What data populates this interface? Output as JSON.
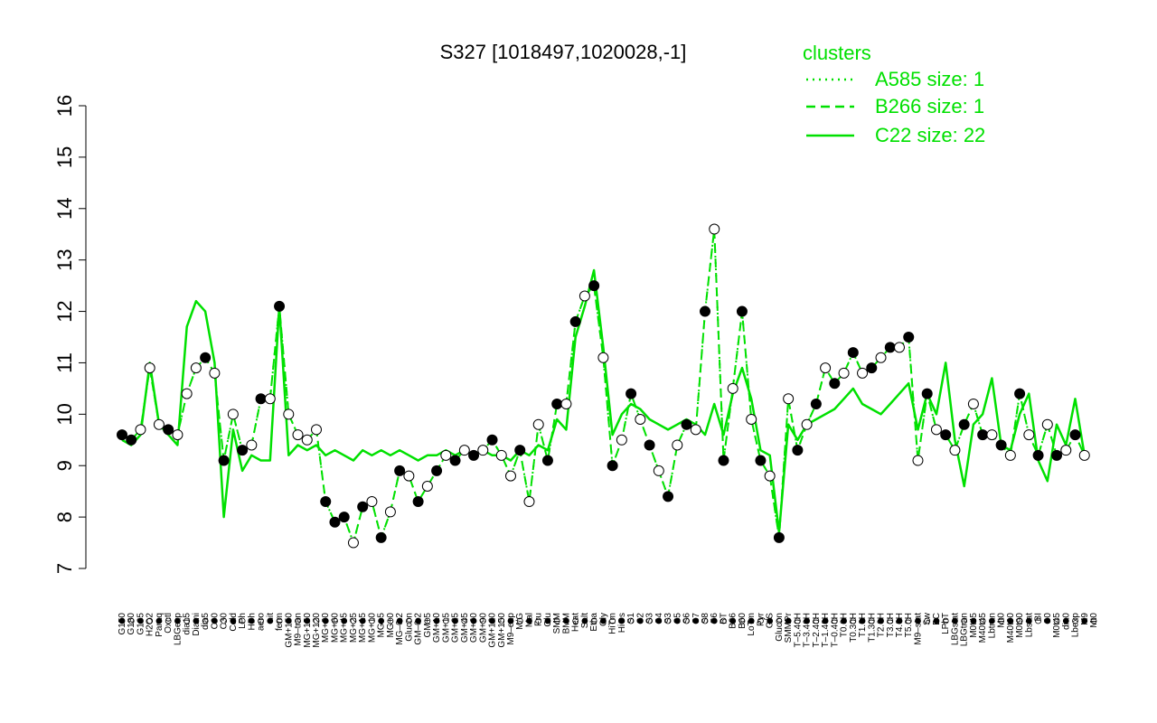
{
  "chart_data": {
    "type": "line",
    "title": "S327 [1018497,1020028,-1]",
    "xlabel": "",
    "ylabel": "",
    "ylim": [
      7,
      16
    ],
    "yticks": [
      7,
      8,
      9,
      10,
      11,
      12,
      13,
      14,
      15,
      16
    ],
    "xtick_labels": [
      "G150",
      "G180",
      "G135",
      "H2O2",
      "Paraq",
      "Oxctl",
      "LBGexp",
      "dia15",
      "Diami",
      "dia5",
      "C90",
      "C30",
      "Cold",
      "LPh",
      "HPh",
      "aero",
      "nit",
      "ferm",
      "GM+150",
      "M9–tran",
      "MG+150",
      "MG+120",
      "MG+90",
      "MG+60",
      "MG+45",
      "MG+25",
      "MG+15",
      "MG+10",
      "MG+5",
      "MG+0",
      "MG–0.2",
      "Glucon",
      "GM–0.2",
      "GM+5",
      "GM+10",
      "GM+15",
      "GM+25",
      "GM+45",
      "GM+60",
      "GM+90",
      "GM+120",
      "GM+150",
      "M9–exp",
      "M/G",
      "Mal",
      "Fru",
      "Glu",
      "SMM",
      "BMM",
      "Heat",
      "Salt",
      "Etha",
      "Gly",
      "HiTm",
      "HiOs",
      "S1",
      "S2",
      "S3",
      "S4",
      "S3",
      "S5",
      "S6",
      "S7",
      "S8",
      "S6",
      "BT",
      "B36",
      "B60",
      "LoTm",
      "Pyr",
      "G/S",
      "Glucon",
      "SMMPr",
      "T–5.40H",
      "T–3.40H",
      "T–2.40H",
      "T–1.40H",
      "T–0.40H",
      "T0.0H",
      "T0.30H",
      "T1.0H",
      "T1.30H",
      "T2.0H",
      "T3.0H",
      "T4.0H",
      "T5.0H",
      "M9–stat",
      "Sw",
      "BC",
      "LPhT",
      "LBGstat",
      "LBGtran",
      "M0t45",
      "M40t45",
      "Lbtran",
      "Mt0",
      "M40t90",
      "M0t90",
      "Lbstat",
      "BI",
      "S0",
      "M0t45",
      "dia0",
      "Lbexp",
      "M9",
      "Mt0"
    ],
    "series": [
      {
        "name": "A585 size: 1",
        "style": "dotted",
        "color": "#00e000",
        "y": [
          9.6,
          9.5,
          9.7,
          10.9,
          9.8,
          9.7,
          9.6,
          10.4,
          10.9,
          11.1,
          10.8,
          9.1,
          10.0,
          9.3,
          9.4,
          10.3,
          10.3,
          12.1,
          10.0,
          9.6,
          9.5,
          9.7,
          8.3,
          7.9,
          8.0,
          7.5,
          8.2,
          8.3,
          7.6,
          8.1,
          8.9,
          8.8,
          8.3,
          8.6,
          8.9,
          9.2,
          9.1,
          9.3,
          9.2,
          9.3,
          9.5,
          9.2,
          8.8,
          9.3,
          8.3,
          9.8,
          9.1,
          10.2,
          10.2,
          11.8,
          12.3,
          12.5,
          11.1,
          9.0,
          9.5,
          10.4,
          9.9,
          9.4,
          8.9,
          8.4,
          9.4,
          9.8,
          9.7,
          12.0,
          13.6,
          9.1,
          10.5,
          12.0,
          9.9,
          9.1,
          8.8,
          7.6,
          10.3,
          9.3,
          9.8,
          10.2,
          10.9,
          10.6,
          10.8,
          11.2,
          10.8,
          10.9,
          11.1,
          11.3,
          11.3,
          11.5,
          9.1,
          10.4,
          9.7,
          9.6,
          9.3,
          9.8,
          10.2,
          9.6,
          9.6,
          9.4,
          9.2,
          10.4,
          9.6,
          9.2,
          9.8,
          9.2,
          9.3,
          9.6,
          9.2
        ]
      },
      {
        "name": "B266 size: 1",
        "style": "dashed",
        "color": "#00e000",
        "y": [
          9.6,
          9.5,
          9.7,
          10.9,
          9.8,
          9.7,
          9.6,
          10.4,
          10.9,
          11.1,
          10.8,
          9.1,
          10.0,
          9.3,
          9.4,
          10.3,
          10.3,
          12.1,
          10.0,
          9.6,
          9.5,
          9.7,
          8.3,
          7.9,
          8.0,
          7.5,
          8.2,
          8.3,
          7.6,
          8.1,
          8.9,
          8.8,
          8.3,
          8.6,
          8.9,
          9.2,
          9.1,
          9.3,
          9.2,
          9.3,
          9.5,
          9.2,
          8.8,
          9.3,
          8.3,
          9.8,
          9.1,
          10.2,
          10.2,
          11.8,
          12.3,
          12.5,
          11.1,
          9.0,
          9.5,
          10.4,
          9.9,
          9.4,
          8.9,
          8.4,
          9.4,
          9.8,
          9.7,
          12.0,
          13.6,
          9.1,
          10.5,
          12.0,
          9.9,
          9.1,
          8.8,
          7.6,
          10.3,
          9.3,
          9.8,
          10.2,
          10.9,
          10.6,
          10.8,
          11.2,
          10.8,
          10.9,
          11.1,
          11.3,
          11.3,
          11.5,
          9.1,
          10.4,
          9.7,
          9.6,
          9.3,
          9.8,
          10.2,
          9.6,
          9.6,
          9.4,
          9.2,
          10.4,
          9.6,
          9.2,
          9.8,
          9.2,
          9.3,
          9.6,
          9.2
        ]
      },
      {
        "name": "C22 size: 22",
        "style": "solid",
        "color": "#00e000",
        "y": [
          9.5,
          9.4,
          9.6,
          11.0,
          9.8,
          9.6,
          9.4,
          11.7,
          12.2,
          12.0,
          11.0,
          8.0,
          9.7,
          8.9,
          9.2,
          9.1,
          9.1,
          12.1,
          9.2,
          9.4,
          9.3,
          9.4,
          9.2,
          9.3,
          9.2,
          9.1,
          9.3,
          9.2,
          9.3,
          9.2,
          9.3,
          9.2,
          9.1,
          9.2,
          9.2,
          9.3,
          9.2,
          9.3,
          9.2,
          9.3,
          9.2,
          9.2,
          9.1,
          9.3,
          9.2,
          9.4,
          9.3,
          9.9,
          9.7,
          11.5,
          12.1,
          12.8,
          11.3,
          9.6,
          10.0,
          10.2,
          10.1,
          9.9,
          9.8,
          9.7,
          9.8,
          9.9,
          9.8,
          9.6,
          10.2,
          9.6,
          10.4,
          10.9,
          10.3,
          9.3,
          9.2,
          7.7,
          9.8,
          9.5,
          9.8,
          9.9,
          10.0,
          10.1,
          10.3,
          10.5,
          10.2,
          10.1,
          10.0,
          10.2,
          10.4,
          10.6,
          9.7,
          10.4,
          10.0,
          11.0,
          9.5,
          8.6,
          9.8,
          10.0,
          10.7,
          9.4,
          9.3,
          10.0,
          10.4,
          9.1,
          8.7,
          9.8,
          9.4,
          10.3,
          9.2
        ]
      }
    ],
    "points": {
      "filled": [
        0,
        1,
        5,
        9,
        11,
        13,
        15,
        17,
        22,
        23,
        24,
        26,
        28,
        30,
        32,
        34,
        36,
        38,
        40,
        43,
        46,
        47,
        49,
        51,
        53,
        55,
        57,
        59,
        61,
        63,
        65,
        67,
        69,
        71,
        73,
        75,
        77,
        79,
        81,
        83,
        85,
        87,
        89,
        91,
        93,
        95,
        97,
        99,
        101,
        103
      ],
      "open": [
        2,
        3,
        4,
        6,
        7,
        8,
        10,
        12,
        14,
        16,
        18,
        19,
        20,
        21,
        25,
        27,
        29,
        31,
        33,
        35,
        37,
        39,
        41,
        42,
        44,
        45,
        48,
        50,
        52,
        54,
        56,
        58,
        60,
        62,
        64,
        66,
        68,
        70,
        72,
        74,
        76,
        78,
        80,
        82,
        84,
        86,
        88,
        90,
        92,
        94,
        96,
        98,
        100,
        102,
        104
      ]
    },
    "legend": {
      "title": "clusters",
      "position": "top-right",
      "entries": [
        "A585 size: 1",
        "B266 size: 1",
        "C22 size: 22"
      ]
    },
    "grid": false
  }
}
